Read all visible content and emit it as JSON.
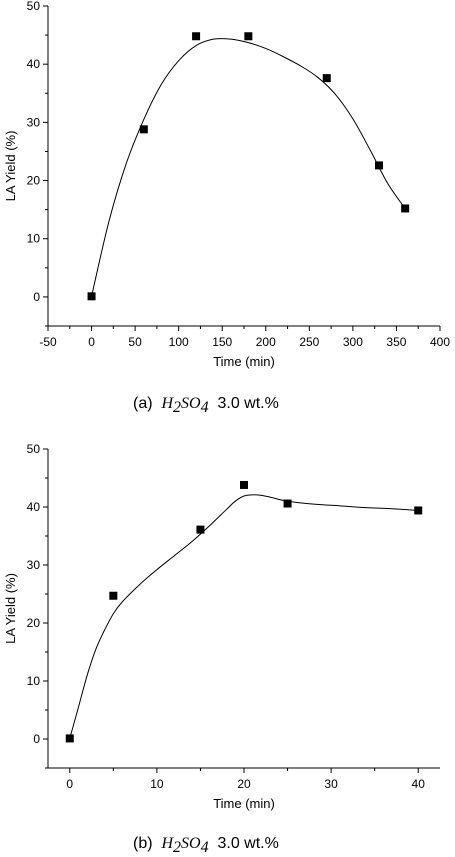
{
  "chart_data": [
    {
      "type": "scatter",
      "caption": {
        "label": "(a)",
        "formula_main": "H",
        "formula_sub1": "2",
        "formula_mid": "SO",
        "formula_sub2": "4",
        "suffix": "3.0 wt.%"
      },
      "xlabel": "Time (min)",
      "ylabel": "LA Yield (%)",
      "xlim": [
        -50,
        400
      ],
      "ylim": [
        -5,
        50
      ],
      "xticks": [
        -50,
        0,
        50,
        100,
        150,
        200,
        250,
        300,
        350,
        400
      ],
      "yticks": [
        0,
        10,
        20,
        30,
        40,
        50
      ],
      "grid": false,
      "legend": "none",
      "series": [
        {
          "x": [
            0,
            60,
            120,
            180,
            270,
            330,
            360
          ],
          "y": [
            0.1,
            28.8,
            44.8,
            44.8,
            37.6,
            22.6,
            15.2
          ]
        }
      ],
      "fit_curve": {
        "x": [
          0,
          20,
          40,
          60,
          80,
          100,
          120,
          140,
          160,
          180,
          200,
          220,
          240,
          260,
          280,
          300,
          320,
          340,
          360
        ],
        "y": [
          0.1,
          13,
          23,
          30.5,
          36.5,
          40.6,
          43.2,
          44.3,
          44.3,
          43.7,
          42.7,
          41.3,
          39.7,
          37.7,
          34.8,
          30.6,
          25.2,
          19.5,
          15.2
        ]
      }
    },
    {
      "type": "scatter",
      "caption": {
        "label": "(b)",
        "formula_main": "H",
        "formula_sub1": "2",
        "formula_mid": "SO",
        "formula_sub2": "4",
        "suffix": "3.0 wt.%"
      },
      "xlabel": "Time (min)",
      "ylabel": "LA Yield (%)",
      "xlim": [
        -2.5,
        42.5
      ],
      "ylim": [
        -5,
        50
      ],
      "xticks": [
        0,
        10,
        20,
        30,
        40
      ],
      "yticks": [
        0,
        10,
        20,
        30,
        40,
        50
      ],
      "grid": false,
      "legend": "none",
      "series": [
        {
          "x": [
            0,
            5,
            15,
            20,
            25,
            40
          ],
          "y": [
            0.1,
            24.7,
            36.1,
            43.8,
            40.6,
            39.4
          ]
        }
      ],
      "fit_curve": {
        "x": [
          0,
          1,
          2,
          3,
          4,
          5,
          6,
          8,
          10,
          12,
          14,
          16,
          18,
          19,
          20,
          21,
          22,
          23,
          25,
          28,
          31,
          34,
          37,
          40
        ],
        "y": [
          0.1,
          5.5,
          11,
          15.5,
          18.8,
          21.6,
          23.6,
          26.6,
          29.2,
          31.6,
          34,
          36.7,
          39.6,
          41,
          41.9,
          42.1,
          42,
          41.7,
          41,
          40.5,
          40.2,
          39.9,
          39.7,
          39.4
        ]
      }
    }
  ]
}
